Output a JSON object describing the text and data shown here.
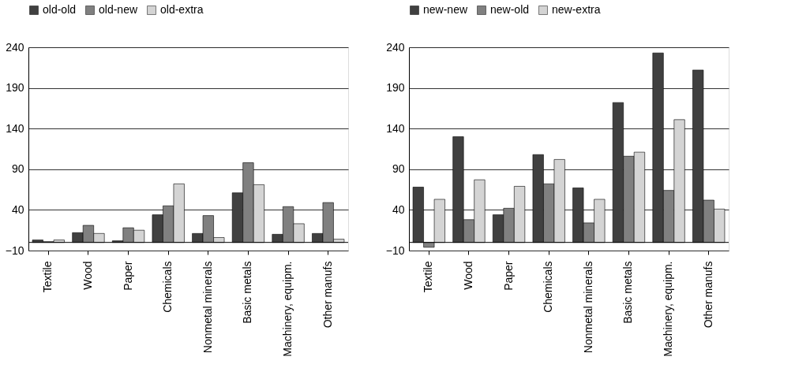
{
  "chart_data": [
    {
      "type": "bar",
      "categories": [
        "Textile",
        "Wood",
        "Paper",
        "Chemicals",
        "Nonmetal minerals",
        "Basic metals",
        "Machinery, equipm.",
        "Other manufs"
      ],
      "ylim": [
        -10,
        240
      ],
      "yticks": [
        -10,
        40,
        90,
        140,
        190,
        240
      ],
      "grid": "y",
      "legend": "top",
      "series": [
        {
          "name": "old-old",
          "color": "#404040",
          "values": [
            3,
            12,
            2,
            34,
            11,
            61,
            10,
            11
          ]
        },
        {
          "name": "old-new",
          "color": "#808080",
          "values": [
            1,
            21,
            18,
            45,
            33,
            98,
            44,
            49
          ]
        },
        {
          "name": "old-extra",
          "color": "#d4d4d4",
          "values": [
            3,
            11,
            15,
            72,
            6,
            71,
            23,
            4
          ]
        }
      ]
    },
    {
      "type": "bar",
      "categories": [
        "Textile",
        "Wood",
        "Paper",
        "Chemicals",
        "Nonmetal minerals",
        "Basic metals",
        "Machinery, equipm.",
        "Other manufs"
      ],
      "ylim": [
        -10,
        240
      ],
      "yticks": [
        -10,
        40,
        90,
        140,
        190,
        240
      ],
      "grid": "y",
      "legend": "top",
      "series": [
        {
          "name": "new-new",
          "color": "#404040",
          "values": [
            68,
            130,
            34,
            108,
            67,
            172,
            233,
            212
          ]
        },
        {
          "name": "new-old",
          "color": "#808080",
          "values": [
            -6,
            28,
            42,
            72,
            24,
            106,
            64,
            52
          ]
        },
        {
          "name": "new-extra",
          "color": "#d4d4d4",
          "values": [
            53,
            77,
            69,
            102,
            53,
            111,
            151,
            41
          ]
        }
      ]
    }
  ]
}
